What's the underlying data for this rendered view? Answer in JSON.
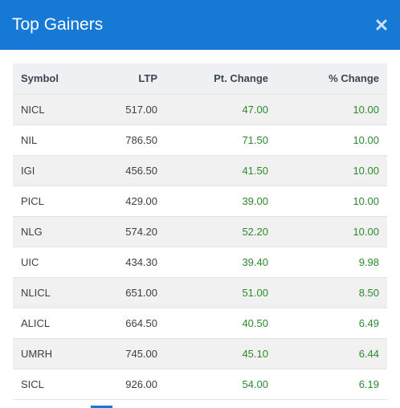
{
  "modal": {
    "title": "Top Gainers",
    "close_icon": "close-icon",
    "header_color": "#1779d6",
    "positive_color": "#2c8a2c"
  },
  "table": {
    "columns": [
      "Symbol",
      "LTP",
      "Pt. Change",
      "% Change"
    ],
    "rows": [
      {
        "symbol": "NICL",
        "ltp": "517.00",
        "pt_change": "47.00",
        "pct_change": "10.00"
      },
      {
        "symbol": "NIL",
        "ltp": "786.50",
        "pt_change": "71.50",
        "pct_change": "10.00"
      },
      {
        "symbol": "IGI",
        "ltp": "456.50",
        "pt_change": "41.50",
        "pct_change": "10.00"
      },
      {
        "symbol": "PICL",
        "ltp": "429.00",
        "pt_change": "39.00",
        "pct_change": "10.00"
      },
      {
        "symbol": "NLG",
        "ltp": "574.20",
        "pt_change": "52.20",
        "pct_change": "10.00"
      },
      {
        "symbol": "UIC",
        "ltp": "434.30",
        "pt_change": "39.40",
        "pct_change": "9.98"
      },
      {
        "symbol": "NLICL",
        "ltp": "651.00",
        "pt_change": "51.00",
        "pct_change": "8.50"
      },
      {
        "symbol": "ALICL",
        "ltp": "664.50",
        "pt_change": "40.50",
        "pct_change": "6.49"
      },
      {
        "symbol": "UMRH",
        "ltp": "745.00",
        "pt_change": "45.10",
        "pct_change": "6.44"
      },
      {
        "symbol": "SICL",
        "ltp": "926.00",
        "pt_change": "54.00",
        "pct_change": "6.19"
      }
    ]
  }
}
